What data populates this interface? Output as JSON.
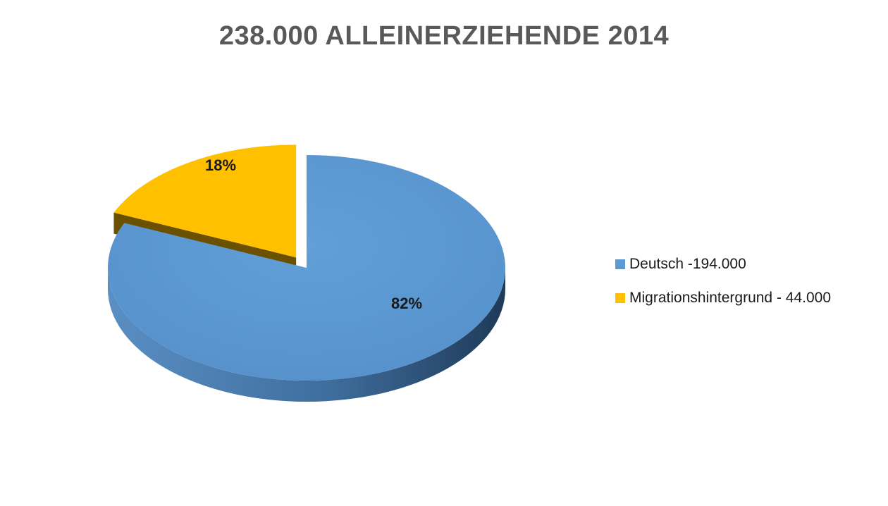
{
  "chart_data": {
    "type": "pie",
    "title": "238.000 ALLEINERZIEHENDE 2014",
    "categories": [
      "Deutsch -194.000",
      "Migrationshintergrund - 44.000"
    ],
    "values": [
      194000,
      44000
    ],
    "data_labels": [
      "82%",
      "18%"
    ],
    "colors": [
      "#5b9bd5",
      "#ffc000"
    ],
    "exploded": [
      false,
      true
    ],
    "style": "3d",
    "legend_position": "right"
  }
}
